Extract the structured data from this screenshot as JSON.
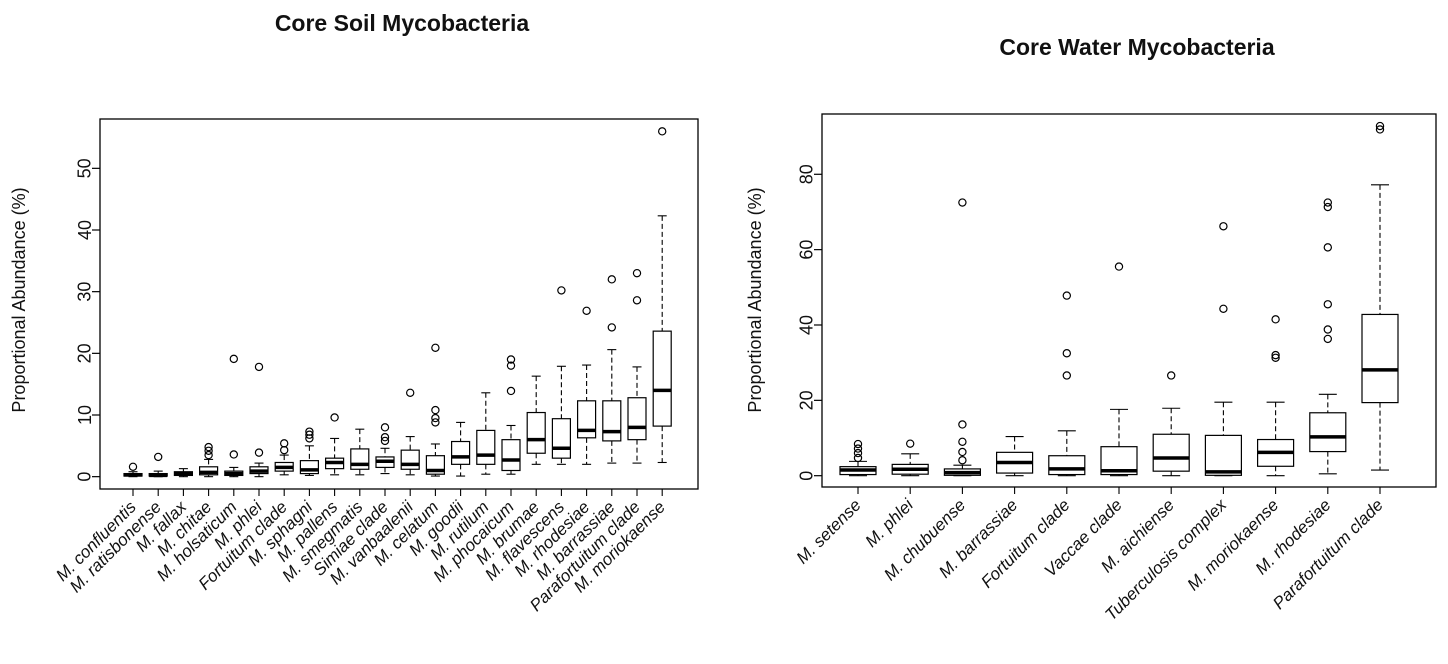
{
  "chart_data": [
    {
      "type": "boxplot",
      "title": "Core Soil Mycobacteria",
      "xlabel": "",
      "ylabel": "Proportional Abundance (%)",
      "ylim": [
        -2,
        58
      ],
      "yticks": [
        0,
        10,
        20,
        30,
        40,
        50
      ],
      "grid": false,
      "legend": "none",
      "categories": [
        "M. confluentis",
        "M. ratisbonense",
        "M. fallax",
        "M. chitae",
        "M. holsaticum",
        "M. phlei",
        "Fortuitum clade",
        "M. sphagni",
        "M. pallens",
        "M. smegmatis",
        "Simiae clade",
        "M. vanbaalenii",
        "M. celatum",
        "M. goodii",
        "M. rutilum",
        "M. phocaicum",
        "M. brumae",
        "M. flavescens",
        "M. rhodesiae",
        "M. barrassiae",
        "Parafortuitum clade",
        "M. moriokaense"
      ],
      "boxes": [
        {
          "min": 0,
          "q1": 0.1,
          "median": 0.3,
          "q3": 0.5,
          "max": 0.8,
          "outliers": [
            1.6
          ]
        },
        {
          "min": 0,
          "q1": 0.1,
          "median": 0.2,
          "q3": 0.5,
          "max": 0.9,
          "outliers": [
            3.2
          ]
        },
        {
          "min": 0,
          "q1": 0.2,
          "median": 0.5,
          "q3": 0.8,
          "max": 1.3,
          "outliers": []
        },
        {
          "min": 0,
          "q1": 0.3,
          "median": 0.7,
          "q3": 1.6,
          "max": 2.8,
          "outliers": [
            3.5,
            4.2,
            4.8
          ]
        },
        {
          "min": 0,
          "q1": 0.2,
          "median": 0.5,
          "q3": 0.9,
          "max": 1.5,
          "outliers": [
            3.6,
            19.1
          ]
        },
        {
          "min": 0,
          "q1": 0.5,
          "median": 0.9,
          "q3": 1.6,
          "max": 2.2,
          "outliers": [
            3.9,
            17.8
          ]
        },
        {
          "min": 0.3,
          "q1": 0.9,
          "median": 1.5,
          "q3": 2.3,
          "max": 3.5,
          "outliers": [
            4.3,
            5.4
          ]
        },
        {
          "min": 0.2,
          "q1": 0.5,
          "median": 1.1,
          "q3": 2.6,
          "max": 5.0,
          "outliers": [
            6.2,
            6.8,
            7.3
          ]
        },
        {
          "min": 0.3,
          "q1": 1.3,
          "median": 2.3,
          "q3": 3.0,
          "max": 6.2,
          "outliers": [
            9.6
          ]
        },
        {
          "min": 0.3,
          "q1": 1.2,
          "median": 2.0,
          "q3": 4.5,
          "max": 7.7,
          "outliers": []
        },
        {
          "min": 0.5,
          "q1": 1.5,
          "median": 2.5,
          "q3": 3.2,
          "max": 4.6,
          "outliers": [
            5.8,
            6.4,
            8.0
          ]
        },
        {
          "min": 0.3,
          "q1": 1.2,
          "median": 2.0,
          "q3": 4.3,
          "max": 6.5,
          "outliers": [
            13.6
          ]
        },
        {
          "min": 0.1,
          "q1": 0.4,
          "median": 1.0,
          "q3": 3.4,
          "max": 5.3,
          "outliers": [
            8.8,
            9.5,
            10.8,
            20.9
          ]
        },
        {
          "min": 0.1,
          "q1": 2.0,
          "median": 3.2,
          "q3": 5.7,
          "max": 8.8,
          "outliers": []
        },
        {
          "min": 0.4,
          "q1": 2.0,
          "median": 3.5,
          "q3": 7.5,
          "max": 13.6,
          "outliers": []
        },
        {
          "min": 0.4,
          "q1": 1.0,
          "median": 2.7,
          "q3": 6.0,
          "max": 8.3,
          "outliers": [
            13.9,
            18.0,
            19.0
          ]
        },
        {
          "min": 2.0,
          "q1": 3.8,
          "median": 6.0,
          "q3": 10.4,
          "max": 16.3,
          "outliers": []
        },
        {
          "min": 2.0,
          "q1": 3.0,
          "median": 4.6,
          "q3": 9.4,
          "max": 17.9,
          "outliers": [
            30.2
          ]
        },
        {
          "min": 2.0,
          "q1": 6.3,
          "median": 7.5,
          "q3": 12.3,
          "max": 18.1,
          "outliers": [
            26.9
          ]
        },
        {
          "min": 2.2,
          "q1": 5.8,
          "median": 7.3,
          "q3": 12.3,
          "max": 20.6,
          "outliers": [
            24.2,
            32.0
          ]
        },
        {
          "min": 2.2,
          "q1": 6.0,
          "median": 8.0,
          "q3": 12.8,
          "max": 17.8,
          "outliers": [
            28.6,
            33.0
          ]
        },
        {
          "min": 2.3,
          "q1": 8.2,
          "median": 14.0,
          "q3": 23.6,
          "max": 42.3,
          "outliers": [
            56.0
          ]
        }
      ]
    },
    {
      "type": "boxplot",
      "title": "Core Water Mycobacteria",
      "xlabel": "",
      "ylabel": "Proportional Abundance (%)",
      "ylim": [
        -3,
        96
      ],
      "yticks": [
        0,
        20,
        40,
        60,
        80
      ],
      "grid": false,
      "legend": "none",
      "categories": [
        "M. setense",
        "M. phlei",
        "M. chubuense",
        "M. barrassiae",
        "Fortuitum clade",
        "Vaccae clade",
        "M. aichiense",
        "Tuberculosis complex",
        "M. moriokaense",
        "M. rhodesiae",
        "Parafortuitum clade"
      ],
      "boxes": [
        {
          "min": 0,
          "q1": 0.3,
          "median": 1.5,
          "q3": 2.4,
          "max": 3.8,
          "outliers": [
            4.7,
            6.0,
            7.2,
            8.4
          ]
        },
        {
          "min": 0,
          "q1": 0.4,
          "median": 1.7,
          "q3": 3.0,
          "max": 5.8,
          "outliers": [
            8.5
          ]
        },
        {
          "min": 0,
          "q1": 0.1,
          "median": 0.8,
          "q3": 1.8,
          "max": 2.8,
          "outliers": [
            4.1,
            6.3,
            9.0,
            13.6,
            72.5
          ]
        },
        {
          "min": 0,
          "q1": 0.7,
          "median": 3.5,
          "q3": 6.2,
          "max": 10.4,
          "outliers": []
        },
        {
          "min": 0,
          "q1": 0.3,
          "median": 1.8,
          "q3": 5.3,
          "max": 11.9,
          "outliers": [
            26.6,
            32.5,
            47.8
          ]
        },
        {
          "min": 0,
          "q1": 0.3,
          "median": 1.3,
          "q3": 7.7,
          "max": 17.6,
          "outliers": [
            55.5
          ]
        },
        {
          "min": 0,
          "q1": 1.2,
          "median": 4.7,
          "q3": 11.0,
          "max": 17.9,
          "outliers": [
            26.6
          ]
        },
        {
          "min": 0,
          "q1": 0.1,
          "median": 1.0,
          "q3": 10.7,
          "max": 19.5,
          "outliers": [
            44.3,
            66.2
          ]
        },
        {
          "min": 0,
          "q1": 2.5,
          "median": 6.2,
          "q3": 9.6,
          "max": 19.5,
          "outliers": [
            31.3,
            32.0,
            41.5
          ]
        },
        {
          "min": 0.5,
          "q1": 6.4,
          "median": 10.3,
          "q3": 16.7,
          "max": 21.6,
          "outliers": [
            36.3,
            38.8,
            45.5,
            60.6,
            71.3,
            72.5
          ]
        },
        {
          "min": 1.5,
          "q1": 19.4,
          "median": 28.1,
          "q3": 42.8,
          "max": 77.2,
          "outliers": [
            91.9,
            92.8
          ]
        }
      ]
    }
  ]
}
